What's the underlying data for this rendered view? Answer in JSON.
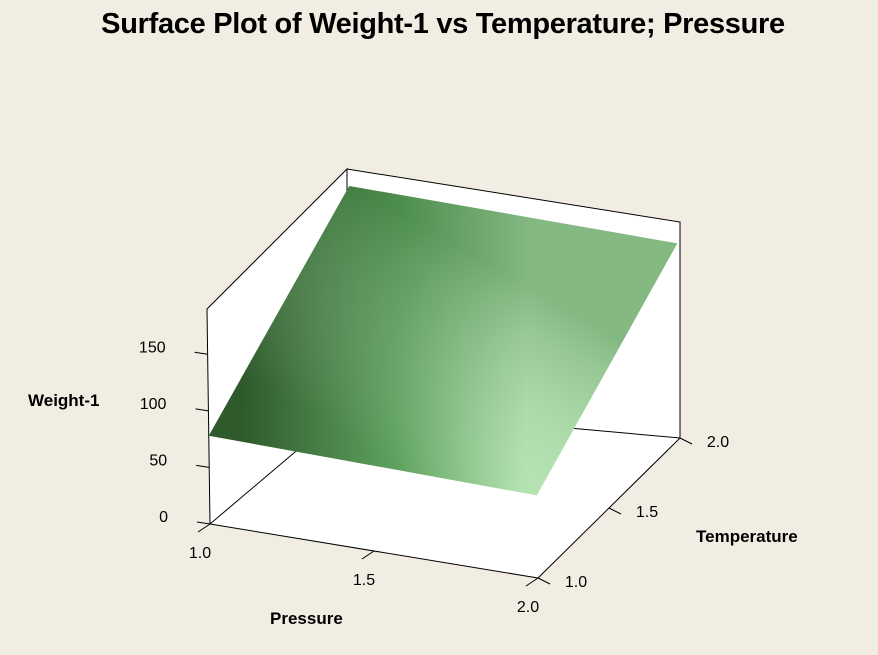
{
  "chart_data": {
    "type": "surface",
    "title": "Surface Plot of Weight-1 vs Temperature; Pressure",
    "xlabel": "Pressure",
    "ylabel": "Temperature",
    "zlabel": "Weight-1",
    "x_ticks": [
      "1.0",
      "1.5",
      "2.0"
    ],
    "y_ticks": [
      "1.0",
      "1.5",
      "2.0"
    ],
    "z_ticks": [
      "0",
      "50",
      "100",
      "150"
    ],
    "xlim": [
      1.0,
      2.0
    ],
    "ylim": [
      1.0,
      2.0
    ],
    "zlim": [
      0,
      190
    ],
    "x": [
      1.0,
      2.0
    ],
    "y": [
      1.0,
      2.0
    ],
    "z": [
      [
        78,
        73
      ],
      [
        175,
        172
      ]
    ],
    "colors": {
      "surface_dark": "#2f5a2c",
      "surface_mid": "#5ea25f",
      "surface_light": "#b2e3af",
      "background": "#f1ede3",
      "box_fill": "#ffffff"
    }
  }
}
